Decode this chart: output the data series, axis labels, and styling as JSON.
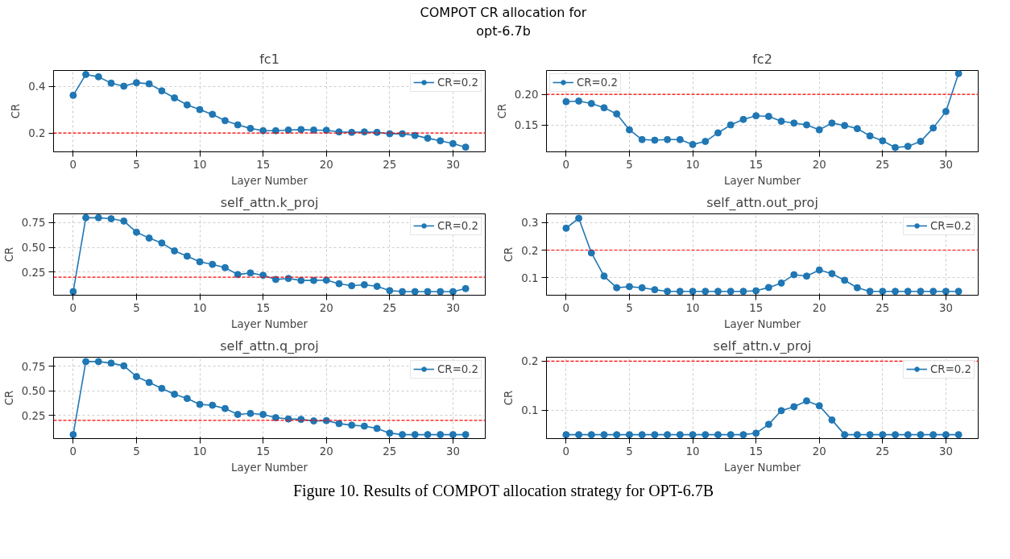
{
  "chart_data": [
    {
      "type": "line",
      "title": "fc1",
      "xlabel": "Layer Number",
      "ylabel": "CR",
      "annotations": [
        "COMPOT CR allocation for\nopt-6.7b",
        "Figure 10. Results of COMPOT allocation strategy for OPT-6.7B"
      ],
      "x": [
        0,
        1,
        2,
        3,
        4,
        5,
        6,
        7,
        8,
        9,
        10,
        11,
        12,
        13,
        14,
        15,
        16,
        17,
        18,
        19,
        20,
        21,
        22,
        23,
        24,
        25,
        26,
        27,
        28,
        29,
        30,
        31
      ],
      "xlim": [
        -1.55,
        32.55
      ],
      "xticks": [
        0,
        5,
        10,
        15,
        20,
        25,
        30
      ],
      "ylim": [
        0.12,
        0.467
      ],
      "yticks": [
        0.2,
        0.4
      ],
      "grid": true,
      "legend": "top right",
      "marker": "circle",
      "line_style": "solid",
      "ref_lines": [
        {
          "axis": "y",
          "value": 0.2,
          "color": "#ff0000",
          "line_style": "dashed"
        }
      ],
      "series": [
        {
          "name": "CR=0.2",
          "color": "#1f77b4",
          "values": [
            0.361,
            0.45,
            0.44,
            0.413,
            0.4,
            0.415,
            0.41,
            0.38,
            0.35,
            0.32,
            0.3,
            0.28,
            0.253,
            0.235,
            0.22,
            0.21,
            0.21,
            0.213,
            0.215,
            0.213,
            0.212,
            0.205,
            0.203,
            0.205,
            0.203,
            0.197,
            0.197,
            0.19,
            0.178,
            0.167,
            0.155,
            0.14
          ]
        }
      ]
    },
    {
      "type": "line",
      "title": "fc2",
      "xlabel": "Layer Number",
      "ylabel": "CR",
      "x": [
        0,
        1,
        2,
        3,
        4,
        5,
        6,
        7,
        8,
        9,
        10,
        11,
        12,
        13,
        14,
        15,
        16,
        17,
        18,
        19,
        20,
        21,
        22,
        23,
        24,
        25,
        26,
        27,
        28,
        29,
        30,
        31
      ],
      "xlim": [
        -1.55,
        32.55
      ],
      "xticks": [
        0,
        5,
        10,
        15,
        20,
        25,
        30
      ],
      "ylim": [
        0.106,
        0.239
      ],
      "yticks": [
        {
          "value": 0.15,
          "label": "0.15"
        },
        {
          "value": 0.2,
          "label": "0.20"
        }
      ],
      "grid": true,
      "legend": "top left",
      "marker": "circle",
      "line_style": "solid",
      "ref_lines": [
        {
          "axis": "y",
          "value": 0.2,
          "color": "#ff0000",
          "line_style": "dashed"
        }
      ],
      "series": [
        {
          "name": "CR=0.2",
          "color": "#1f77b4",
          "values": [
            0.188,
            0.189,
            0.185,
            0.178,
            0.168,
            0.142,
            0.126,
            0.125,
            0.126,
            0.126,
            0.118,
            0.123,
            0.137,
            0.15,
            0.159,
            0.165,
            0.164,
            0.156,
            0.153,
            0.15,
            0.142,
            0.153,
            0.149,
            0.144,
            0.132,
            0.124,
            0.113,
            0.115,
            0.123,
            0.145,
            0.172,
            0.234
          ]
        }
      ]
    },
    {
      "type": "line",
      "title": "self_attn.k_proj",
      "xlabel": "Layer Number",
      "ylabel": "CR",
      "x": [
        0,
        1,
        2,
        3,
        4,
        5,
        6,
        7,
        8,
        9,
        10,
        11,
        12,
        13,
        14,
        15,
        16,
        17,
        18,
        19,
        20,
        21,
        22,
        23,
        24,
        25,
        26,
        27,
        28,
        29,
        30,
        31
      ],
      "xlim": [
        -1.55,
        32.55
      ],
      "xticks": [
        0,
        5,
        10,
        15,
        20,
        25,
        30
      ],
      "ylim": [
        0.02,
        0.835
      ],
      "yticks": [
        {
          "value": 0.25,
          "label": "0.25"
        },
        {
          "value": 0.5,
          "label": "0.50"
        },
        {
          "value": 0.75,
          "label": "0.75"
        }
      ],
      "grid": true,
      "legend": "top right",
      "marker": "circle",
      "line_style": "solid",
      "ref_lines": [
        {
          "axis": "y",
          "value": 0.2,
          "color": "#ff0000",
          "line_style": "dashed"
        }
      ],
      "series": [
        {
          "name": "CR=0.2",
          "color": "#1f77b4",
          "values": [
            0.056,
            0.796,
            0.796,
            0.786,
            0.763,
            0.651,
            0.592,
            0.543,
            0.464,
            0.411,
            0.355,
            0.329,
            0.296,
            0.227,
            0.243,
            0.22,
            0.178,
            0.188,
            0.168,
            0.168,
            0.171,
            0.135,
            0.115,
            0.125,
            0.109,
            0.066,
            0.056,
            0.056,
            0.056,
            0.056,
            0.056,
            0.086
          ]
        }
      ]
    },
    {
      "type": "line",
      "title": "self_attn.out_proj",
      "xlabel": "Layer Number",
      "ylabel": "CR",
      "x": [
        0,
        1,
        2,
        3,
        4,
        5,
        6,
        7,
        8,
        9,
        10,
        11,
        12,
        13,
        14,
        15,
        16,
        17,
        18,
        19,
        20,
        21,
        22,
        23,
        24,
        25,
        26,
        27,
        28,
        29,
        30,
        31
      ],
      "xlim": [
        -1.55,
        32.55
      ],
      "xticks": [
        0,
        5,
        10,
        15,
        20,
        25,
        30
      ],
      "ylim": [
        0.037,
        0.331
      ],
      "yticks": [
        0.1,
        0.2,
        0.3
      ],
      "grid": true,
      "legend": "top right",
      "marker": "circle",
      "line_style": "solid",
      "ref_lines": [
        {
          "axis": "y",
          "value": 0.2,
          "color": "#ff0000",
          "line_style": "dashed"
        }
      ],
      "series": [
        {
          "name": "CR=0.2",
          "color": "#1f77b4",
          "values": [
            0.279,
            0.315,
            0.19,
            0.106,
            0.064,
            0.068,
            0.064,
            0.057,
            0.051,
            0.051,
            0.051,
            0.051,
            0.051,
            0.051,
            0.051,
            0.053,
            0.065,
            0.081,
            0.111,
            0.106,
            0.128,
            0.115,
            0.091,
            0.064,
            0.051,
            0.051,
            0.051,
            0.051,
            0.051,
            0.051,
            0.051,
            0.051
          ]
        }
      ]
    },
    {
      "type": "line",
      "title": "self_attn.q_proj",
      "xlabel": "Layer Number",
      "ylabel": "CR",
      "x": [
        0,
        1,
        2,
        3,
        4,
        5,
        6,
        7,
        8,
        9,
        10,
        11,
        12,
        13,
        14,
        15,
        16,
        17,
        18,
        19,
        20,
        21,
        22,
        23,
        24,
        25,
        26,
        27,
        28,
        29,
        30,
        31
      ],
      "xlim": [
        -1.55,
        32.55
      ],
      "xticks": [
        0,
        5,
        10,
        15,
        20,
        25,
        30
      ],
      "ylim": [
        0.015,
        0.84
      ],
      "yticks": [
        {
          "value": 0.25,
          "label": "0.25"
        },
        {
          "value": 0.5,
          "label": "0.50"
        },
        {
          "value": 0.75,
          "label": "0.75"
        }
      ],
      "grid": true,
      "legend": "top right",
      "marker": "circle",
      "line_style": "solid",
      "ref_lines": [
        {
          "axis": "y",
          "value": 0.2,
          "color": "#ff0000",
          "line_style": "dashed"
        }
      ],
      "series": [
        {
          "name": "CR=0.2",
          "color": "#1f77b4",
          "values": [
            0.055,
            0.796,
            0.796,
            0.78,
            0.753,
            0.644,
            0.584,
            0.524,
            0.465,
            0.422,
            0.362,
            0.353,
            0.32,
            0.26,
            0.27,
            0.26,
            0.227,
            0.214,
            0.21,
            0.194,
            0.197,
            0.167,
            0.151,
            0.141,
            0.118,
            0.071,
            0.055,
            0.055,
            0.055,
            0.055,
            0.055,
            0.055
          ]
        }
      ]
    },
    {
      "type": "line",
      "title": "self_attn.v_proj",
      "xlabel": "Layer Number",
      "ylabel": "CR",
      "x": [
        0,
        1,
        2,
        3,
        4,
        5,
        6,
        7,
        8,
        9,
        10,
        11,
        12,
        13,
        14,
        15,
        16,
        17,
        18,
        19,
        20,
        21,
        22,
        23,
        24,
        25,
        26,
        27,
        28,
        29,
        30,
        31
      ],
      "xlim": [
        -1.55,
        32.55
      ],
      "xticks": [
        0,
        5,
        10,
        15,
        20,
        25,
        30
      ],
      "ylim": [
        0.042,
        0.208
      ],
      "yticks": [
        0.1,
        0.2
      ],
      "grid": true,
      "legend": "top right",
      "marker": "circle",
      "line_style": "solid",
      "ref_lines": [
        {
          "axis": "y",
          "value": 0.2,
          "color": "#ff0000",
          "line_style": "dashed"
        }
      ],
      "series": [
        {
          "name": "CR=0.2",
          "color": "#1f77b4",
          "values": [
            0.05,
            0.05,
            0.05,
            0.05,
            0.05,
            0.05,
            0.05,
            0.05,
            0.05,
            0.05,
            0.05,
            0.05,
            0.05,
            0.05,
            0.05,
            0.053,
            0.071,
            0.099,
            0.107,
            0.119,
            0.109,
            0.08,
            0.05,
            0.05,
            0.05,
            0.05,
            0.05,
            0.05,
            0.05,
            0.05,
            0.05,
            0.05
          ]
        }
      ]
    }
  ]
}
